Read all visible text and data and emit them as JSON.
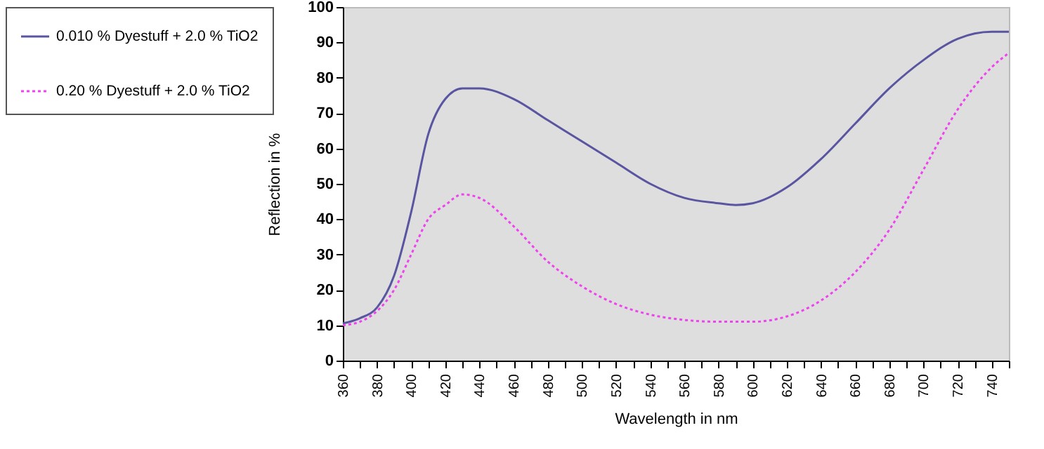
{
  "chart_data": {
    "type": "line",
    "xlabel": "Wavelength  in nm",
    "ylabel": "Reflection  in %",
    "x": [
      360,
      370,
      380,
      390,
      400,
      410,
      420,
      430,
      440,
      460,
      480,
      500,
      520,
      540,
      560,
      580,
      590,
      600,
      620,
      640,
      660,
      680,
      700,
      720,
      740,
      750
    ],
    "series": [
      {
        "name": "0.010 % Dyestuff + 2.0 % TiO2",
        "color": "#5a55a0",
        "line_style": "solid",
        "values": [
          10.5,
          12,
          15,
          24,
          42,
          64,
          74,
          77,
          77,
          74,
          68,
          62,
          56,
          50,
          46,
          44.5,
          44,
          44.5,
          49,
          57,
          67,
          77,
          85,
          91,
          93,
          93
        ]
      },
      {
        "name": "0.20 % Dyestuff + 2.0 % TiO2",
        "color": "#ee44ee",
        "line_style": "dotted",
        "values": [
          10,
          11,
          14,
          20,
          30,
          40,
          44,
          47,
          46,
          38,
          28,
          21,
          16,
          13,
          11.5,
          11,
          11,
          11,
          12.5,
          17,
          25,
          37,
          54,
          71,
          83,
          87
        ]
      }
    ],
    "xlim": [
      360,
      750
    ],
    "xticks": [
      360,
      {
        "value": 370,
        "label": null
      },
      380,
      {
        "value": 390,
        "label": null
      },
      400,
      {
        "value": 410,
        "label": null
      },
      420,
      {
        "value": 430,
        "label": null
      },
      440,
      {
        "value": 450,
        "label": null
      },
      460,
      {
        "value": 470,
        "label": null
      },
      480,
      {
        "value": 490,
        "label": null
      },
      500,
      {
        "value": 510,
        "label": null
      },
      520,
      {
        "value": 530,
        "label": null
      },
      540,
      {
        "value": 550,
        "label": null
      },
      560,
      {
        "value": 570,
        "label": null
      },
      580,
      {
        "value": 590,
        "label": null
      },
      600,
      {
        "value": 610,
        "label": null
      },
      620,
      {
        "value": 630,
        "label": null
      },
      640,
      {
        "value": 650,
        "label": null
      },
      660,
      {
        "value": 670,
        "label": null
      },
      680,
      {
        "value": 690,
        "label": null
      },
      700,
      {
        "value": 710,
        "label": null
      },
      720,
      {
        "value": 730,
        "label": null
      },
      740,
      {
        "value": 750,
        "label": null
      }
    ],
    "ylim": [
      0,
      100
    ],
    "yticks": [
      0,
      10,
      20,
      30,
      40,
      50,
      60,
      70,
      80,
      90,
      100
    ],
    "grid": false,
    "legend": "top left",
    "marker": "none"
  }
}
